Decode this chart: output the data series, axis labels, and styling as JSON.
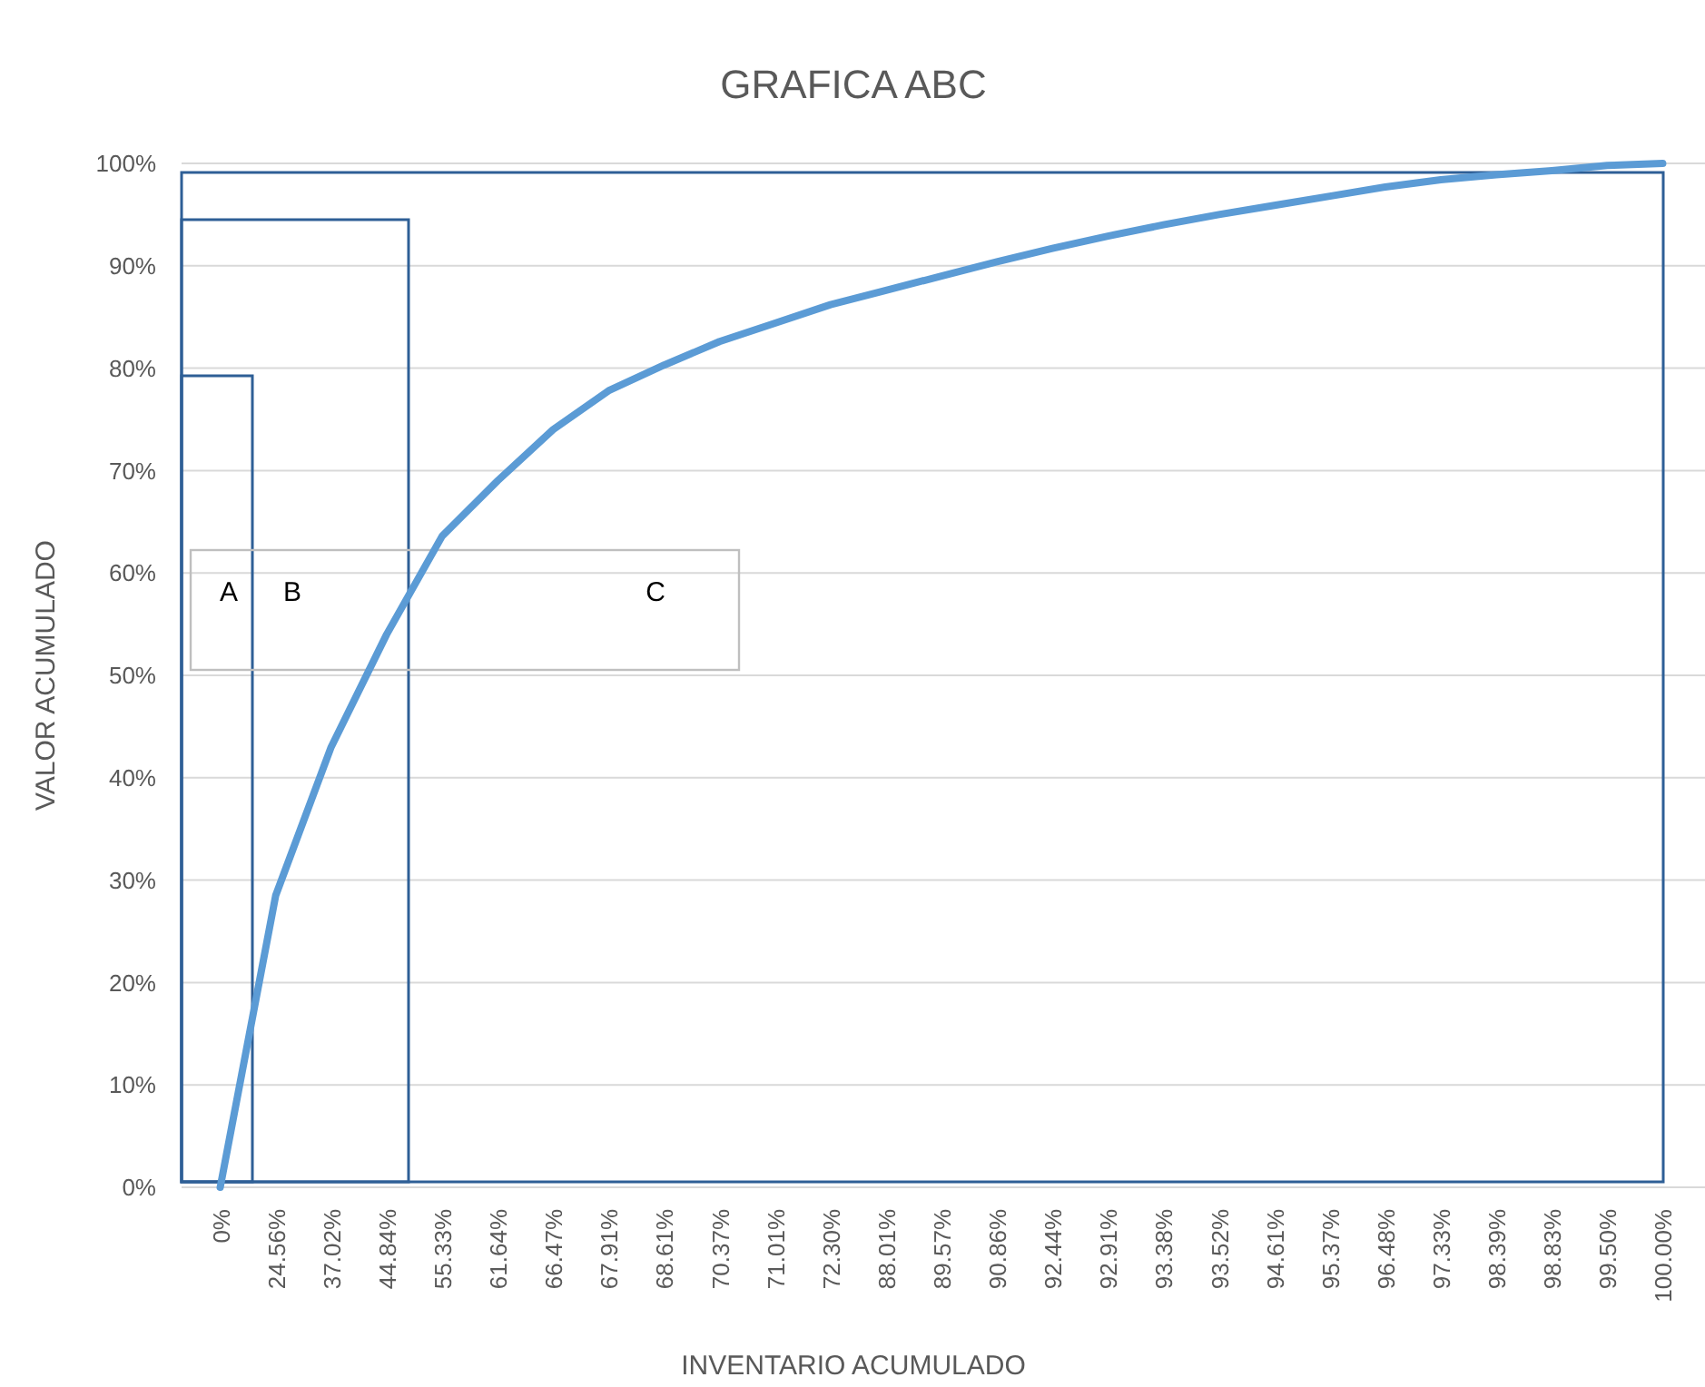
{
  "chart_data": {
    "type": "line",
    "title": "GRAFICA ABC",
    "xlabel": "INVENTARIO ACUMULADO",
    "ylabel": "VALOR ACUMULADO",
    "categories": [
      "0%",
      "24.56%",
      "37.02%",
      "44.84%",
      "55.33%",
      "61.64%",
      "66.47%",
      "67.91%",
      "68.61%",
      "70.37%",
      "71.01%",
      "72.30%",
      "88.01%",
      "89.57%",
      "90.86%",
      "92.44%",
      "92.91%",
      "93.38%",
      "93.52%",
      "94.61%",
      "95.37%",
      "96.48%",
      "97.33%",
      "98.39%",
      "98.83%",
      "99.50%",
      "100.00%"
    ],
    "series": [
      {
        "color": "#5b9bd5",
        "values": [
          0,
          28.5,
          43,
          54,
          63.6,
          69,
          74,
          77.8,
          80.3,
          82.6,
          84.4,
          86.2,
          87.6,
          89,
          90.4,
          91.7,
          92.9,
          94,
          95,
          95.9,
          96.8,
          97.7,
          98.4,
          98.9,
          99.3,
          99.8,
          100
        ]
      }
    ],
    "ylim": [
      0,
      100
    ],
    "yticks": [
      {
        "value": 0,
        "label": "0%"
      },
      {
        "value": 10,
        "label": "10%"
      },
      {
        "value": 20,
        "label": "20%"
      },
      {
        "value": 30,
        "label": "30%"
      },
      {
        "value": 40,
        "label": "40%"
      },
      {
        "value": 50,
        "label": "50%"
      },
      {
        "value": 60,
        "label": "60%"
      },
      {
        "value": 70,
        "label": "70%"
      },
      {
        "value": 80,
        "label": "80%"
      },
      {
        "value": 90,
        "label": "90%"
      },
      {
        "value": 100,
        "label": "100%"
      }
    ],
    "grid": "y",
    "marker": "none",
    "line_style": "solid",
    "annotations": [
      "A",
      "B",
      "C"
    ]
  }
}
